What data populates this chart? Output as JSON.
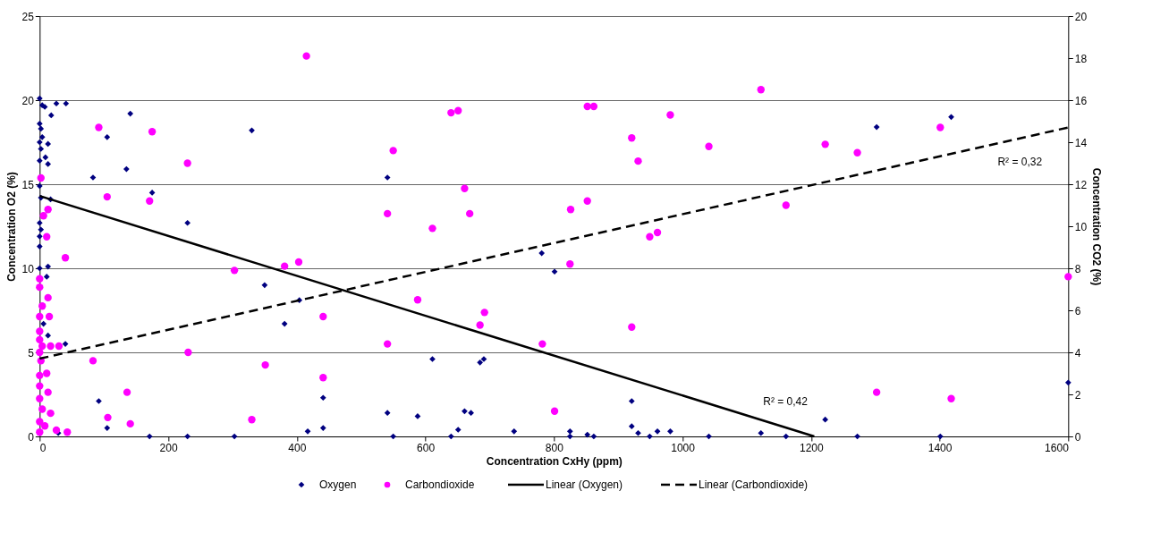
{
  "chart_data": {
    "type": "scatter",
    "xlabel": "Concentration CxHy (ppm)",
    "ylabel": "Concentration O2 (%)",
    "y2label": "Concentration CO2 (%)",
    "xlim": [
      0,
      1600
    ],
    "xticks": [
      0,
      200,
      400,
      600,
      800,
      1000,
      1200,
      1400,
      1600
    ],
    "ylim": [
      0,
      25
    ],
    "yticks": [
      0,
      5,
      10,
      15,
      20,
      25
    ],
    "y2lim": [
      0,
      20
    ],
    "y2ticks": [
      0,
      2,
      4,
      6,
      8,
      10,
      12,
      14,
      16,
      18,
      20
    ],
    "grid": "y",
    "legend": "bottom",
    "annotations": [
      "R² = 0,42",
      "R² = 0,32"
    ],
    "series": [
      {
        "name": "Oxygen",
        "color": "#000080",
        "marker": "diamond",
        "x": [
          0,
          4,
          8,
          26,
          41,
          18,
          0,
          2,
          4,
          0,
          13,
          2,
          9,
          0,
          13,
          0,
          2,
          17,
          0,
          2,
          0,
          0,
          0,
          13,
          11,
          6,
          13,
          40,
          29,
          83,
          105,
          141,
          135,
          175,
          230,
          330,
          350,
          381,
          404,
          441,
          541,
          92,
          105,
          171,
          230,
          303,
          417,
          441,
          541,
          550,
          588,
          611,
          640,
          651,
          661,
          671,
          685,
          691,
          738,
          781,
          801,
          825,
          825,
          852,
          862,
          921,
          921,
          931,
          949,
          961,
          981,
          1041,
          1122,
          1161,
          1222,
          1272,
          1302,
          1401,
          1418,
          1600
        ],
        "values": [
          20.1,
          19.7,
          19.6,
          19.8,
          19.8,
          19.1,
          18.6,
          18.3,
          17.8,
          17.5,
          17.4,
          17.1,
          16.6,
          16.4,
          16.2,
          14.9,
          14.2,
          14.1,
          12.7,
          12.3,
          11.9,
          11.3,
          10.0,
          10.1,
          9.5,
          6.7,
          6.0,
          5.5,
          0.2,
          15.4,
          17.8,
          19.2,
          15.9,
          14.5,
          12.7,
          18.2,
          9.0,
          6.7,
          8.1,
          2.3,
          15.4,
          2.1,
          0.5,
          0,
          0,
          0,
          0.3,
          0.5,
          1.4,
          0,
          1.2,
          4.6,
          0,
          0.4,
          1.5,
          1.4,
          4.4,
          4.6,
          0.3,
          10.9,
          9.8,
          0.3,
          0,
          0.1,
          0,
          2.1,
          0.6,
          0.2,
          0,
          0.3,
          0.3,
          0,
          0.2,
          0,
          1.0,
          0,
          18.4,
          0,
          19.0,
          3.2
        ]
      },
      {
        "name": "Carbondioxide",
        "color": "#ff00ff",
        "marker": "circle",
        "axis": "y2",
        "x": [
          92,
          2,
          105,
          13,
          6,
          11,
          40,
          0,
          0,
          13,
          4,
          0,
          15,
          0,
          0,
          4,
          17,
          30,
          0,
          2,
          0,
          11,
          0,
          13,
          0,
          4,
          17,
          0,
          8,
          0,
          26,
          43,
          83,
          106,
          415,
          175,
          230,
          171,
          541,
          550,
          611,
          640,
          651,
          661,
          669,
          303,
          381,
          403,
          441,
          588,
          541,
          231,
          351,
          441,
          136,
          141,
          330,
          852,
          862,
          981,
          921,
          931,
          1041,
          1122,
          1161,
          852,
          826,
          949,
          961,
          825,
          692,
          685,
          782,
          921,
          801,
          1222,
          1272,
          1401,
          1302,
          1418,
          1600
        ],
        "values": [
          14.7,
          12.3,
          11.4,
          10.8,
          10.5,
          9.5,
          8.5,
          7.5,
          7.1,
          6.6,
          6.2,
          5.7,
          5.7,
          5.0,
          4.6,
          4.3,
          4.3,
          4.3,
          4.0,
          3.6,
          2.9,
          3.0,
          2.4,
          2.1,
          1.8,
          1.3,
          1.1,
          0.7,
          0.5,
          0.2,
          0.3,
          0.2,
          3.6,
          0.9,
          18.1,
          14.5,
          13.0,
          11.2,
          10.6,
          13.6,
          9.9,
          15.4,
          15.5,
          11.8,
          10.6,
          7.9,
          8.1,
          8.3,
          5.7,
          6.5,
          4.4,
          4.0,
          3.4,
          2.8,
          2.1,
          0.6,
          0.8,
          15.7,
          15.7,
          15.3,
          14.2,
          13.1,
          13.8,
          16.5,
          11.0,
          11.2,
          10.8,
          9.5,
          9.7,
          8.2,
          5.9,
          5.3,
          4.4,
          5.2,
          1.2,
          13.9,
          13.5,
          14.7,
          2.1,
          1.8,
          7.6
        ]
      },
      {
        "name": "Linear (Oxygen)",
        "type": "line",
        "color": "#000000",
        "line_style": "solid",
        "x": [
          0,
          1205
        ],
        "values": [
          14.3,
          0
        ]
      },
      {
        "name": "Linear (Carbondioxide)",
        "type": "line",
        "color": "#000000",
        "line_style": "dashed",
        "axis": "y2",
        "x": [
          0,
          1600
        ],
        "values": [
          3.7,
          14.7
        ]
      }
    ]
  }
}
